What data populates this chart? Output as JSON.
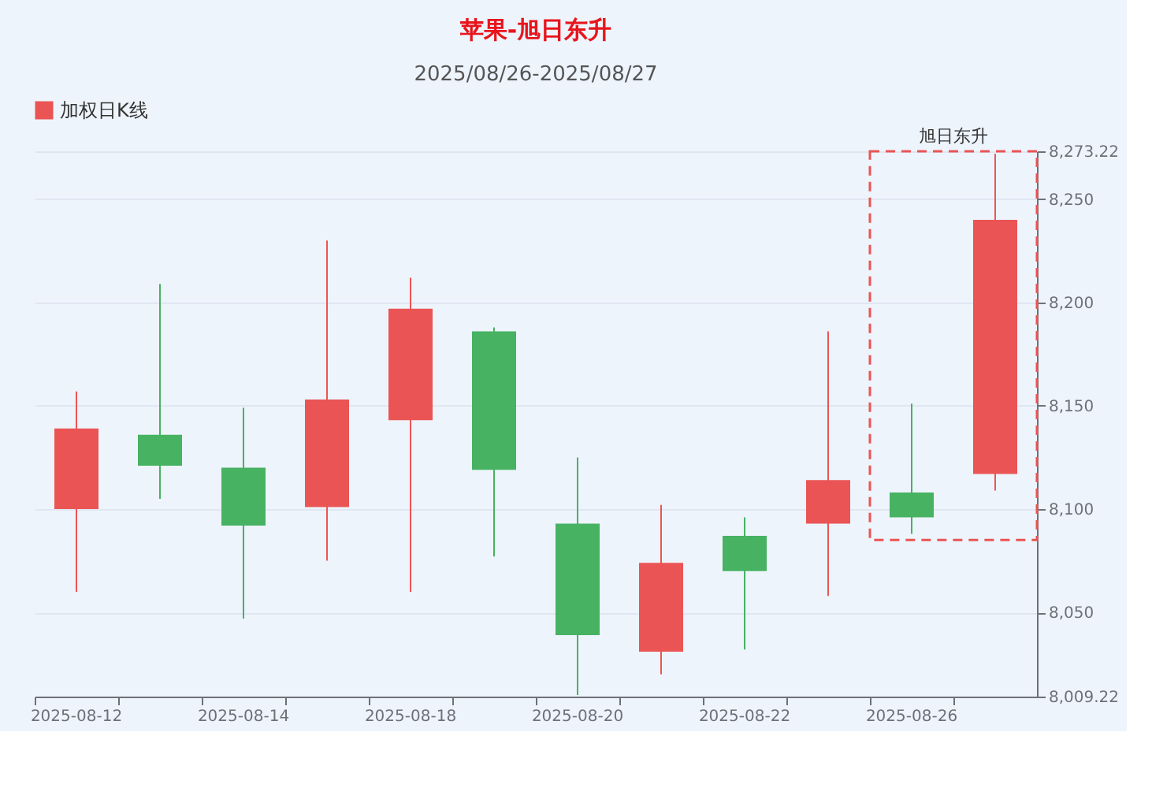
{
  "chart_data": {
    "type": "candlestick",
    "title": "苹果-旭日东升",
    "subtitle": "2025/08/26-2025/08/27",
    "categories": [
      "2025-08-12",
      null,
      "2025-08-14",
      null,
      "2025-08-18",
      null,
      "2025-08-20",
      null,
      "2025-08-22",
      null,
      "2025-08-26",
      null
    ],
    "series": [
      {
        "name": "加权日K线",
        "color": "#eb5454",
        "ohlc": [
          [
            8100,
            8157,
            8060,
            8139
          ],
          [
            8136,
            8209,
            8105,
            8121
          ],
          [
            8120,
            8149,
            8047,
            8092
          ],
          [
            8101,
            8230,
            8075,
            8153
          ],
          [
            8143,
            8212,
            8060,
            8197
          ],
          [
            8186,
            8188,
            8077,
            8119
          ],
          [
            8093,
            8125,
            8010,
            8039
          ],
          [
            8031,
            8102,
            8020,
            8074
          ],
          [
            8087,
            8096,
            8032,
            8070
          ],
          [
            8093,
            8186,
            8058,
            8114
          ],
          [
            8108,
            8151,
            8088,
            8096
          ],
          [
            8117,
            8272,
            8109,
            8240
          ]
        ],
        "colors": [
          "#eb5454",
          "#47b262",
          "#47b262",
          "#eb5454",
          "#eb5454",
          "#47b262",
          "#47b262",
          "#eb5454",
          "#47b262",
          "#eb5454",
          "#47b262",
          "#eb5454"
        ]
      }
    ],
    "ylim": [
      8009.22,
      8273.22
    ],
    "yticks": [
      {
        "value": 8009.22,
        "label": "8,009.22"
      },
      {
        "value": 8050,
        "label": "8,050"
      },
      {
        "value": 8100,
        "label": "8,100"
      },
      {
        "value": 8150,
        "label": "8,150"
      },
      {
        "value": 8200,
        "label": "8,200"
      },
      {
        "value": 8250,
        "label": "8,250"
      },
      {
        "value": 8273.22,
        "label": "8,273.22"
      }
    ],
    "grid": "y",
    "legend": "top",
    "annotations": [
      "旭日东升"
    ]
  }
}
